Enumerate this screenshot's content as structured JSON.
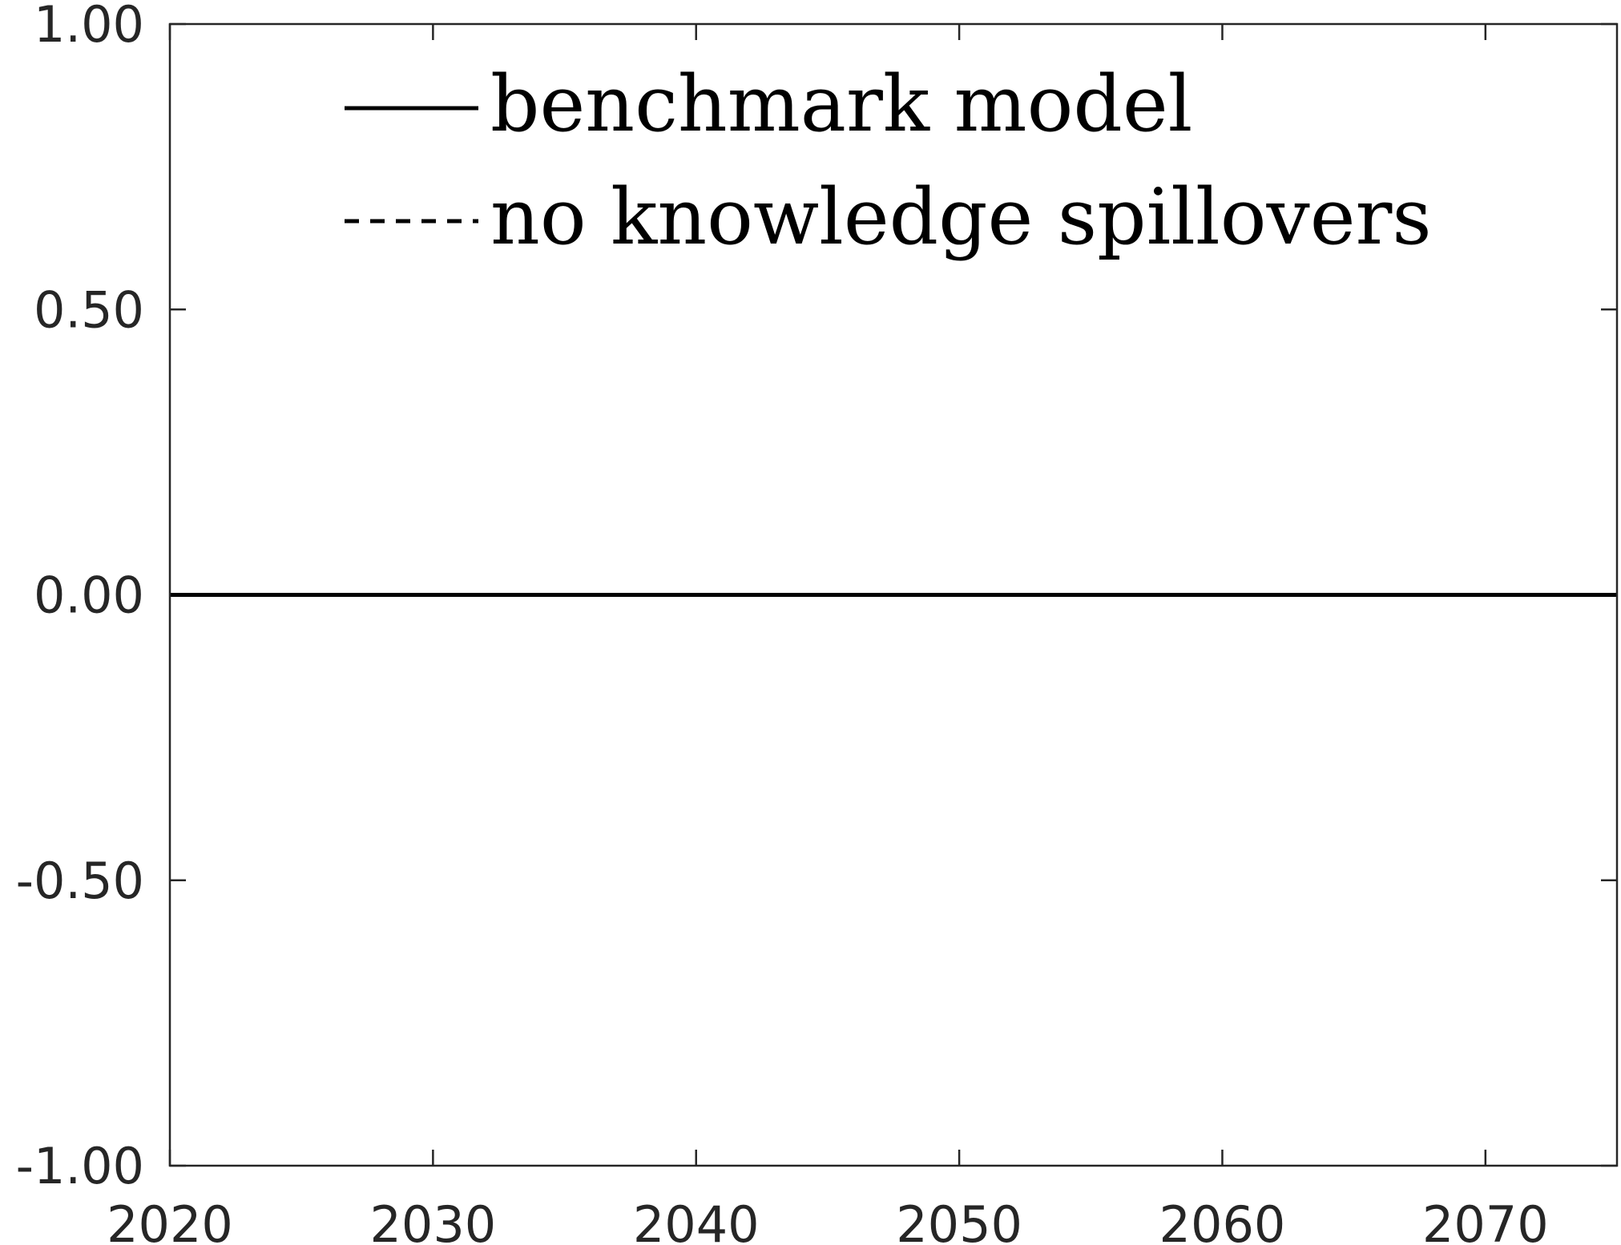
{
  "chart_data": {
    "type": "line",
    "title": "",
    "xlabel": "",
    "ylabel": "",
    "xlim": [
      2020,
      2075
    ],
    "ylim": [
      -1.0,
      1.0
    ],
    "x_ticks": [
      2020,
      2030,
      2040,
      2050,
      2060,
      2070
    ],
    "x_tick_labels": [
      "2020",
      "2030",
      "2040",
      "2050",
      "2060",
      "2070"
    ],
    "y_ticks": [
      -1.0,
      -0.5,
      0.0,
      0.5,
      1.0
    ],
    "y_tick_labels": [
      "-1.00",
      "-0.50",
      "0.00",
      "0.50",
      "1.00"
    ],
    "grid": false,
    "legend_position": "top-left",
    "series": [
      {
        "name": "benchmark model",
        "style": "solid",
        "color": "#000000",
        "x": [
          2020,
          2075
        ],
        "y": [
          0.0,
          0.0
        ]
      },
      {
        "name": "no knowledge spillovers",
        "style": "dashed",
        "color": "#000000",
        "x": [
          2020,
          2075
        ],
        "y": [
          0.0,
          0.0
        ]
      }
    ]
  }
}
